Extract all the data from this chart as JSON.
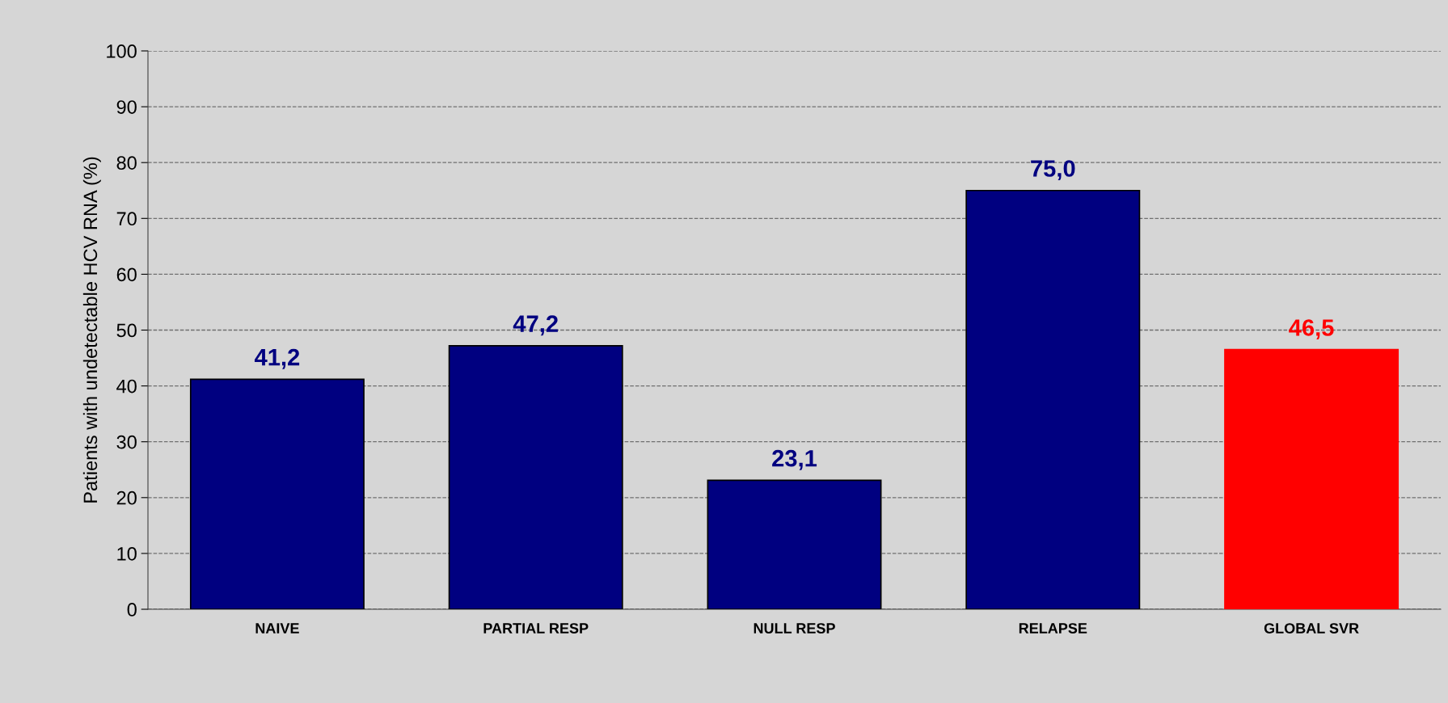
{
  "chart_data": {
    "type": "bar",
    "ylabel": "Patients with undetectable HCV RNA (%)",
    "categories": [
      "NAIVE",
      "PARTIAL RESP",
      "NULL RESP",
      "RELAPSE",
      "GLOBAL SVR"
    ],
    "values": [
      41.2,
      47.2,
      23.1,
      75.0,
      46.5
    ],
    "colors": [
      "#000080",
      "#000080",
      "#000080",
      "#000080",
      "#ff0000"
    ],
    "value_labels": [
      "41,2",
      "47,2",
      "23,1",
      "75,0",
      "46,5"
    ],
    "ylim": [
      0,
      100
    ],
    "yticks": [
      0,
      10,
      20,
      30,
      40,
      50,
      60,
      70,
      80,
      90,
      100
    ],
    "grid": "y",
    "legend": false
  }
}
